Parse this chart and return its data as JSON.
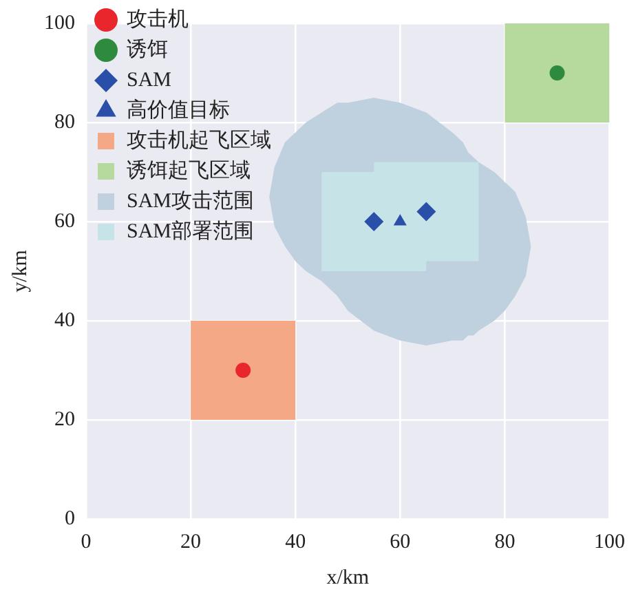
{
  "chart_data": {
    "type": "scatter",
    "xlabel": "x/km",
    "ylabel": "y/km",
    "xlim": [
      0,
      100
    ],
    "ylim": [
      0,
      100
    ],
    "xticks": [
      0,
      20,
      40,
      60,
      80,
      100
    ],
    "yticks": [
      0,
      20,
      40,
      60,
      80,
      100
    ],
    "grid": true,
    "legend": "top left",
    "series": [
      {
        "name": "攻击机",
        "marker": "circle",
        "color": "#e8262b",
        "x": [
          30
        ],
        "values": [
          30
        ]
      },
      {
        "name": "诱饵",
        "marker": "circle",
        "color": "#2e8b3e",
        "x": [
          90
        ],
        "values": [
          90
        ]
      },
      {
        "name": "SAM",
        "marker": "diamond",
        "color": "#2a4fa8",
        "x": [
          55,
          65
        ],
        "values": [
          60,
          62
        ]
      },
      {
        "name": "高价值目标",
        "marker": "triangle",
        "color": "#2a4fa8",
        "x": [
          60
        ],
        "values": [
          60
        ]
      },
      {
        "name": "攻击机起飞区域",
        "type": "area",
        "color": "#f4a886",
        "x": [
          20,
          40,
          40,
          20
        ],
        "values": [
          40,
          40,
          20,
          20
        ]
      },
      {
        "name": "诱饵起飞区域",
        "type": "area",
        "color": "#b6da9e",
        "x": [
          80,
          100,
          100,
          80
        ],
        "values": [
          100,
          100,
          80,
          80
        ]
      },
      {
        "name": "SAM攻击范围",
        "type": "area",
        "color": "#bfd0df",
        "x": [
          35,
          36,
          38,
          40,
          42,
          45,
          48,
          50,
          55,
          60,
          65,
          70,
          72,
          73,
          74,
          75,
          78,
          80,
          82,
          84,
          85,
          84,
          82,
          80,
          78,
          75,
          74,
          73,
          72,
          70,
          65,
          60,
          55,
          50,
          48,
          45,
          42,
          40,
          38,
          36
        ],
        "values": [
          65,
          71,
          76,
          78,
          80,
          82,
          84,
          84,
          85,
          84,
          82,
          78,
          76,
          74,
          73,
          72,
          70,
          68,
          66,
          61,
          55,
          49,
          45,
          42,
          40,
          38,
          37,
          37,
          36,
          36,
          35,
          36,
          38,
          42,
          45,
          48,
          50,
          52,
          55,
          59
        ]
      },
      {
        "name": "SAM部署范围",
        "type": "area",
        "color": "#c6e4e8",
        "x": [
          45,
          55,
          55,
          75,
          75,
          65,
          65,
          45
        ],
        "values": [
          70,
          70,
          72,
          72,
          52,
          52,
          50,
          50
        ]
      }
    ]
  }
}
